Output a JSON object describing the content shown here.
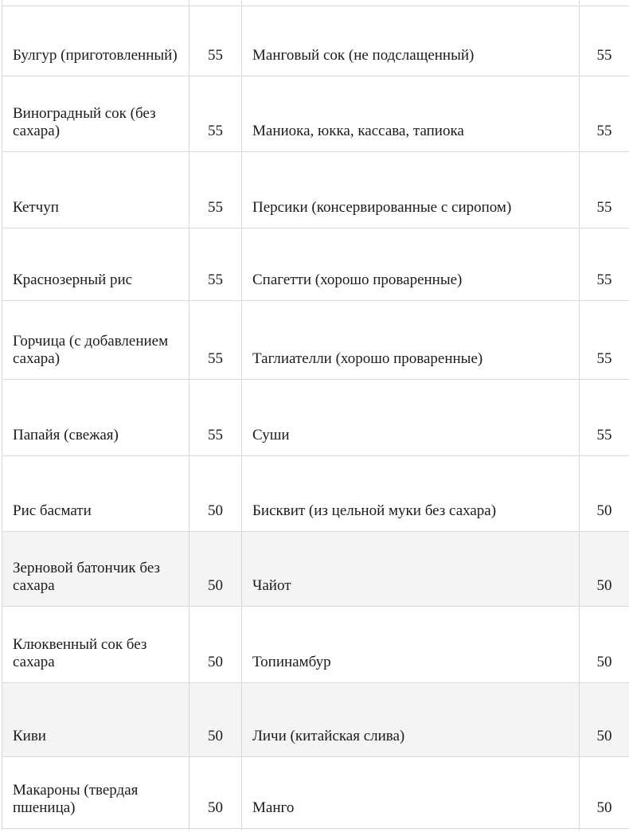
{
  "table": {
    "description": "Glycemic index food table (Russian), fragment",
    "colors": {
      "border": "#d8d8d8",
      "shaded_row": "#f4f4f4",
      "text": "#1b1b1b",
      "background": "#ffffff"
    },
    "rows": [
      {
        "left_food": "Булгур (приготовленный)",
        "left_value": "55",
        "right_food": "Манговый сок (не подслащенный)",
        "right_value": "55",
        "shaded": false
      },
      {
        "left_food": "Виноградный сок (без сахара)",
        "left_value": "55",
        "right_food": "Маниока, юкка, кассава, тапиока",
        "right_value": "55",
        "shaded": false
      },
      {
        "left_food": "Кетчуп",
        "left_value": "55",
        "right_food": "Персики (консервированные с сиропом)",
        "right_value": "55",
        "shaded": false
      },
      {
        "left_food": "Краснозерный рис",
        "left_value": "55",
        "right_food": "Спагетти (хорошо проваренные)",
        "right_value": "55",
        "shaded": false
      },
      {
        "left_food": "Горчица (с добавлением сахара)",
        "left_value": "55",
        "right_food": "Таглиателли (хорошо проваренные)",
        "right_value": "55",
        "shaded": false
      },
      {
        "left_food": "Папайя (свежая)",
        "left_value": "55",
        "right_food": "Суши",
        "right_value": "55",
        "shaded": false
      },
      {
        "left_food": "Рис басмати",
        "left_value": "50",
        "right_food": "Бисквит (из цельной муки без сахара)",
        "right_value": "50",
        "shaded": false
      },
      {
        "left_food": "Зерновой батончик без сахара",
        "left_value": "50",
        "right_food": "Чайот",
        "right_value": "50",
        "shaded": true
      },
      {
        "left_food": "Клюквенный сок без сахара",
        "left_value": "50",
        "right_food": "Топинамбур",
        "right_value": "50",
        "shaded": false
      },
      {
        "left_food": "Киви",
        "left_value": "50",
        "right_food": "Личи (китайская слива)",
        "right_value": "50",
        "shaded": true
      },
      {
        "left_food": "Макароны (твердая пшеница)",
        "left_value": "50",
        "right_food": "Манго",
        "right_value": "50",
        "shaded": false
      }
    ]
  }
}
